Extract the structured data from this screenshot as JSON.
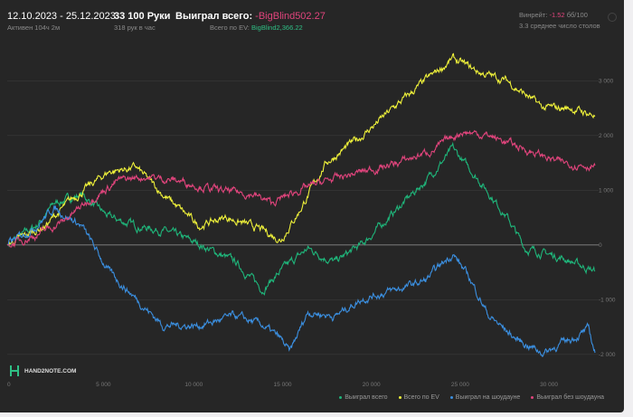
{
  "header": {
    "date_range": "12.10.2023 - 25.12.2023",
    "active": "Активен 104ч 2м",
    "hands": "33 100 Руки",
    "hands_per_hour": "318 рук в час",
    "won_label": "Выиграл всего:",
    "won_value": "-BigBlind502.27",
    "ev_label": "Всего по EV:",
    "ev_value": "BigBlind2,366.22",
    "winrate_label": "Винрейт:",
    "winrate_value": "-1.52",
    "winrate_unit": "бб/100",
    "avg_tables": "3.3 среднее число столов"
  },
  "logo": {
    "text": "HAND2NOTE.COM"
  },
  "colors": {
    "green": "#1fb57a",
    "yellow": "#eef03a",
    "blue": "#3b8fe0",
    "pink": "#e0447c",
    "negative": "#e0447c",
    "positive": "#2fbf85"
  },
  "chart_data": {
    "type": "line",
    "title": "",
    "xlabel": "",
    "ylabel": "",
    "xlim": [
      0,
      33100
    ],
    "ylim": [
      -2400,
      3700
    ],
    "x_ticks": [
      0,
      5000,
      10000,
      15000,
      20000,
      25000,
      30000
    ],
    "x_tick_labels": [
      "0",
      "5 000",
      "10 000",
      "15 000",
      "20 000",
      "25 000",
      "30 000"
    ],
    "y_ticks": [
      3000,
      2000,
      1000,
      0,
      -1000,
      -2000
    ],
    "y_tick_labels": [
      "3 000",
      "2 000",
      "1 000",
      "0",
      "-1 000",
      "-2 000"
    ],
    "grid": true,
    "legend_placement": "bottom-right",
    "series": [
      {
        "name": "Выиграл всего",
        "color": "#1fb57a",
        "points": [
          [
            0,
            0
          ],
          [
            1630,
            350
          ],
          [
            2650,
            760
          ],
          [
            4180,
            925
          ],
          [
            5710,
            510
          ],
          [
            7240,
            350
          ],
          [
            8770,
            265
          ],
          [
            10800,
            15
          ],
          [
            12850,
            -315
          ],
          [
            14380,
            -810
          ],
          [
            15400,
            -480
          ],
          [
            16930,
            -65
          ],
          [
            18460,
            -315
          ],
          [
            20000,
            15
          ],
          [
            22030,
            680
          ],
          [
            23560,
            1170
          ],
          [
            25090,
            1750
          ],
          [
            26620,
            1170
          ],
          [
            28150,
            510
          ],
          [
            29170,
            -65
          ],
          [
            31210,
            -230
          ],
          [
            33100,
            -480
          ]
        ]
      },
      {
        "name": "Всего по EV",
        "color": "#eef03a",
        "points": [
          [
            0,
            0
          ],
          [
            2140,
            350
          ],
          [
            3670,
            840
          ],
          [
            5710,
            1340
          ],
          [
            7240,
            1420
          ],
          [
            8770,
            925
          ],
          [
            10800,
            350
          ],
          [
            12340,
            510
          ],
          [
            14380,
            265
          ],
          [
            15400,
            100
          ],
          [
            16420,
            600
          ],
          [
            17950,
            1500
          ],
          [
            20000,
            2000
          ],
          [
            22030,
            2580
          ],
          [
            23560,
            3000
          ],
          [
            25090,
            3400
          ],
          [
            26620,
            3150
          ],
          [
            28150,
            3000
          ],
          [
            30190,
            2500
          ],
          [
            31720,
            2500
          ],
          [
            33100,
            2366
          ]
        ]
      },
      {
        "name": "Выиграл на шоудауне",
        "color": "#3b8fe0",
        "points": [
          [
            0,
            0
          ],
          [
            1630,
            350
          ],
          [
            2650,
            680
          ],
          [
            4180,
            350
          ],
          [
            5710,
            -480
          ],
          [
            7240,
            -975
          ],
          [
            8770,
            -1470
          ],
          [
            10800,
            -1470
          ],
          [
            12850,
            -1300
          ],
          [
            14380,
            -1470
          ],
          [
            15400,
            -1720
          ],
          [
            15910,
            -1970
          ],
          [
            16930,
            -1220
          ],
          [
            18460,
            -1300
          ],
          [
            20000,
            -975
          ],
          [
            22030,
            -810
          ],
          [
            23560,
            -650
          ],
          [
            25090,
            -150
          ],
          [
            26110,
            -650
          ],
          [
            27130,
            -1300
          ],
          [
            28660,
            -1720
          ],
          [
            30190,
            -1970
          ],
          [
            31720,
            -1720
          ],
          [
            32740,
            -1550
          ],
          [
            33100,
            -1970
          ]
        ]
      },
      {
        "name": "Выиграл без шоудауна",
        "color": "#e0447c",
        "points": [
          [
            0,
            0
          ],
          [
            1630,
            180
          ],
          [
            3160,
            430
          ],
          [
            4690,
            840
          ],
          [
            6220,
            1170
          ],
          [
            7750,
            1250
          ],
          [
            9790,
            1170
          ],
          [
            11830,
            1000
          ],
          [
            13870,
            925
          ],
          [
            14890,
            760
          ],
          [
            16420,
            1000
          ],
          [
            17950,
            1170
          ],
          [
            20000,
            1340
          ],
          [
            22030,
            1500
          ],
          [
            24070,
            1750
          ],
          [
            25600,
            2080
          ],
          [
            27130,
            2000
          ],
          [
            29170,
            1750
          ],
          [
            31210,
            1500
          ],
          [
            33100,
            1450
          ]
        ]
      }
    ]
  }
}
